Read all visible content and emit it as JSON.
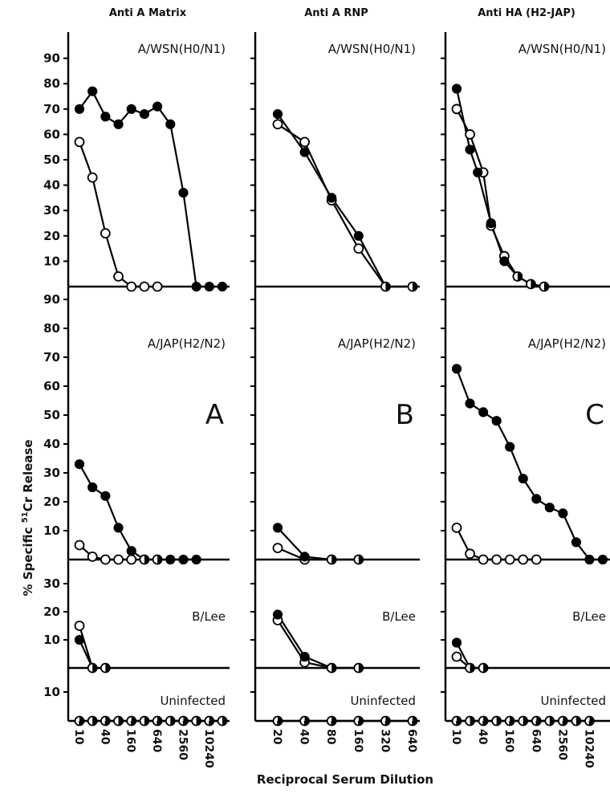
{
  "figure": {
    "ylabel": "% Specific 51Cr Release",
    "xlabel": "Reciprocal Serum Dilution"
  },
  "chart_data": [
    {
      "type": "line",
      "title": "Anti A Matrix",
      "letter": "A",
      "x_tick_labels": [
        "10",
        "40",
        "160",
        "640",
        "2560",
        "10240"
      ],
      "rows": [
        {
          "name": "A/WSN(H0/N1)",
          "filled": [
            [
              10,
              70
            ],
            [
              20,
              77
            ],
            [
              40,
              67
            ],
            [
              80,
              64
            ],
            [
              160,
              70
            ],
            [
              320,
              68
            ],
            [
              640,
              71
            ],
            [
              1280,
              64
            ],
            [
              2560,
              37
            ],
            [
              5120,
              0
            ],
            [
              10240,
              0
            ],
            [
              20480,
              0
            ]
          ],
          "open": [
            [
              10,
              57
            ],
            [
              20,
              43
            ],
            [
              40,
              21
            ],
            [
              80,
              4
            ],
            [
              160,
              0
            ],
            [
              320,
              0
            ],
            [
              640,
              0
            ]
          ]
        },
        {
          "name": "A/JAP(H2/N2)",
          "filled": [
            [
              10,
              33
            ],
            [
              20,
              25
            ],
            [
              40,
              22
            ],
            [
              80,
              11
            ],
            [
              160,
              3
            ],
            [
              320,
              0
            ],
            [
              640,
              0
            ],
            [
              1280,
              0
            ],
            [
              2560,
              0
            ],
            [
              5120,
              0
            ]
          ],
          "open": [
            [
              10,
              5
            ],
            [
              20,
              1
            ],
            [
              40,
              0
            ],
            [
              80,
              0
            ],
            [
              160,
              0
            ],
            [
              320,
              0
            ],
            [
              640,
              0
            ]
          ]
        },
        {
          "name": "B/Lee",
          "filled": [
            [
              10,
              10
            ],
            [
              20,
              0
            ],
            [
              40,
              0
            ]
          ],
          "open": [
            [
              10,
              15
            ],
            [
              20,
              0
            ],
            [
              40,
              0
            ]
          ]
        },
        {
          "name": "Uninfected",
          "filled": [
            [
              10,
              0
            ],
            [
              20,
              0
            ],
            [
              40,
              0
            ],
            [
              80,
              0
            ],
            [
              160,
              0
            ],
            [
              320,
              0
            ],
            [
              640,
              0
            ],
            [
              1280,
              0
            ],
            [
              2560,
              0
            ],
            [
              5120,
              0
            ],
            [
              10240,
              0
            ],
            [
              20480,
              0
            ]
          ],
          "open": [
            [
              10,
              0
            ],
            [
              20,
              0
            ],
            [
              40,
              0
            ],
            [
              80,
              0
            ],
            [
              160,
              0
            ],
            [
              320,
              0
            ],
            [
              640,
              0
            ],
            [
              1280,
              0
            ],
            [
              2560,
              0
            ],
            [
              5120,
              0
            ],
            [
              10240,
              0
            ],
            [
              20480,
              0
            ]
          ]
        }
      ]
    },
    {
      "type": "line",
      "title": "Anti A RNP",
      "letter": "B",
      "x_tick_labels": [
        "20",
        "40",
        "80",
        "160",
        "320",
        "640"
      ],
      "rows": [
        {
          "name": "A/WSN(H0/N1)",
          "filled": [
            [
              20,
              68
            ],
            [
              40,
              53
            ],
            [
              80,
              35
            ],
            [
              160,
              20
            ],
            [
              320,
              0
            ],
            [
              640,
              0
            ]
          ],
          "open": [
            [
              20,
              64
            ],
            [
              40,
              57
            ],
            [
              80,
              34
            ],
            [
              160,
              15
            ],
            [
              320,
              0
            ],
            [
              640,
              0
            ]
          ]
        },
        {
          "name": "A/JAP(H2/N2)",
          "filled": [
            [
              20,
              11
            ],
            [
              40,
              1
            ],
            [
              80,
              0
            ],
            [
              160,
              0
            ]
          ],
          "open": [
            [
              20,
              4
            ],
            [
              40,
              0
            ],
            [
              80,
              0
            ],
            [
              160,
              0
            ]
          ]
        },
        {
          "name": "B/Lee",
          "filled": [
            [
              20,
              19
            ],
            [
              40,
              4
            ],
            [
              80,
              0
            ],
            [
              160,
              0
            ]
          ],
          "open": [
            [
              20,
              17
            ],
            [
              40,
              2
            ],
            [
              80,
              0
            ],
            [
              160,
              0
            ]
          ]
        },
        {
          "name": "Uninfected",
          "filled": [
            [
              20,
              0
            ],
            [
              40,
              0
            ],
            [
              80,
              0
            ],
            [
              160,
              0
            ],
            [
              320,
              0
            ],
            [
              640,
              0
            ]
          ],
          "open": [
            [
              20,
              0
            ],
            [
              40,
              0
            ],
            [
              80,
              0
            ],
            [
              160,
              0
            ],
            [
              320,
              0
            ],
            [
              640,
              0
            ]
          ]
        }
      ]
    },
    {
      "type": "line",
      "title": "Anti HA (H2-JAP)",
      "letter": "C",
      "x_tick_labels": [
        "10",
        "40",
        "160",
        "640",
        "2560",
        "10240"
      ],
      "rows": [
        {
          "name": "A/WSN(H0/N1)",
          "filled": [
            [
              10,
              78
            ],
            [
              20,
              54
            ],
            [
              30,
              45
            ],
            [
              60,
              25
            ],
            [
              120,
              10
            ],
            [
              240,
              4
            ],
            [
              480,
              1
            ],
            [
              960,
              0
            ]
          ],
          "open": [
            [
              10,
              70
            ],
            [
              20,
              60
            ],
            [
              40,
              45
            ],
            [
              60,
              24
            ],
            [
              120,
              12
            ],
            [
              240,
              4
            ],
            [
              480,
              1
            ],
            [
              960,
              0
            ]
          ]
        },
        {
          "name": "A/JAP(H2/N2)",
          "filled": [
            [
              10,
              66
            ],
            [
              20,
              54
            ],
            [
              40,
              51
            ],
            [
              80,
              48
            ],
            [
              160,
              39
            ],
            [
              320,
              28
            ],
            [
              640,
              21
            ],
            [
              1280,
              18
            ],
            [
              2560,
              16
            ],
            [
              5120,
              6
            ],
            [
              10240,
              0
            ],
            [
              20480,
              0
            ]
          ],
          "open": [
            [
              10,
              11
            ],
            [
              20,
              2
            ],
            [
              40,
              0
            ],
            [
              80,
              0
            ],
            [
              160,
              0
            ],
            [
              320,
              0
            ],
            [
              640,
              0
            ]
          ]
        },
        {
          "name": "B/Lee",
          "filled": [
            [
              10,
              9
            ],
            [
              20,
              0
            ],
            [
              40,
              0
            ]
          ],
          "open": [
            [
              10,
              4
            ],
            [
              20,
              0
            ],
            [
              40,
              0
            ]
          ]
        },
        {
          "name": "Uninfected",
          "filled": [
            [
              10,
              0
            ],
            [
              20,
              0
            ],
            [
              40,
              0
            ],
            [
              80,
              0
            ],
            [
              160,
              0
            ],
            [
              320,
              0
            ],
            [
              640,
              0
            ],
            [
              1280,
              0
            ],
            [
              2560,
              0
            ],
            [
              5120,
              0
            ],
            [
              10240,
              0
            ]
          ],
          "open": [
            [
              10,
              0
            ],
            [
              20,
              0
            ],
            [
              40,
              0
            ],
            [
              80,
              0
            ],
            [
              160,
              0
            ],
            [
              320,
              0
            ],
            [
              640,
              0
            ],
            [
              1280,
              0
            ],
            [
              2560,
              0
            ],
            [
              5120,
              0
            ],
            [
              10240,
              0
            ]
          ]
        }
      ]
    }
  ]
}
